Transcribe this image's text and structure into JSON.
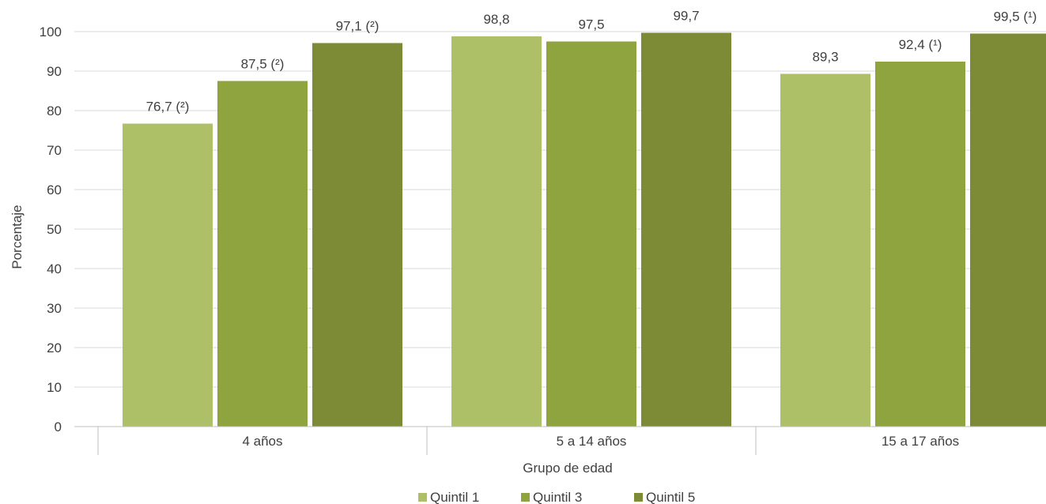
{
  "chart_data": {
    "type": "bar",
    "categories": [
      "4 años",
      "5 a 14 años",
      "15 a 17 años"
    ],
    "series": [
      {
        "name": "Quintil 1",
        "color": "#adbf67",
        "values": [
          76.7,
          98.8,
          89.3
        ],
        "labels": [
          "76,7 (²)",
          "98,8",
          "89,3"
        ]
      },
      {
        "name": "Quintil 3",
        "color": "#8fa33e",
        "values": [
          87.5,
          97.5,
          92.4
        ],
        "labels": [
          "87,5 (²)",
          "97,5",
          "92,4 (¹)"
        ]
      },
      {
        "name": "Quintil 5",
        "color": "#7d8b37",
        "values": [
          97.1,
          99.7,
          99.5
        ],
        "labels": [
          "97,1 (²)",
          "99,7",
          "99,5 (¹)"
        ]
      }
    ],
    "title": "",
    "xlabel": "Grupo de edad",
    "ylabel": "Porcentaje",
    "ylim": [
      0,
      100
    ],
    "yticks": [
      0,
      10,
      20,
      30,
      40,
      50,
      60,
      70,
      80,
      90,
      100
    ],
    "grid": true,
    "legend_position": "bottom"
  }
}
